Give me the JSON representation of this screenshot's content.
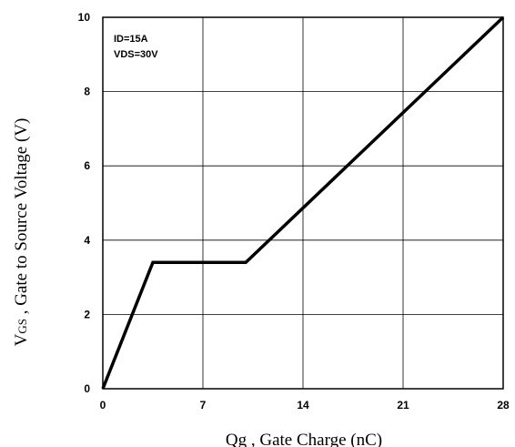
{
  "chart_data": {
    "type": "line",
    "xlim": [
      0,
      28
    ],
    "ylim": [
      0,
      10
    ],
    "x_ticks": [
      0,
      7,
      14,
      21,
      28
    ],
    "y_ticks": [
      0,
      2,
      4,
      6,
      8,
      10
    ],
    "x_tick_labels": [
      "0",
      "7",
      "14",
      "21",
      "28"
    ],
    "y_tick_labels": [
      "0",
      "2",
      "4",
      "6",
      "8",
      "10"
    ],
    "xlabel": "Qg , Gate Charge (nC)",
    "ylabel_main": "V",
    "ylabel_sub": "GS",
    "ylabel_rest": " , Gate to Source Voltage (V)",
    "annotations": [
      "ID=15A",
      "VDS=30V"
    ],
    "grid": true,
    "series": [
      {
        "x": [
          0,
          3.5,
          10,
          28
        ],
        "y": [
          0,
          3.4,
          3.4,
          10
        ]
      }
    ],
    "line_color": "#000000"
  }
}
